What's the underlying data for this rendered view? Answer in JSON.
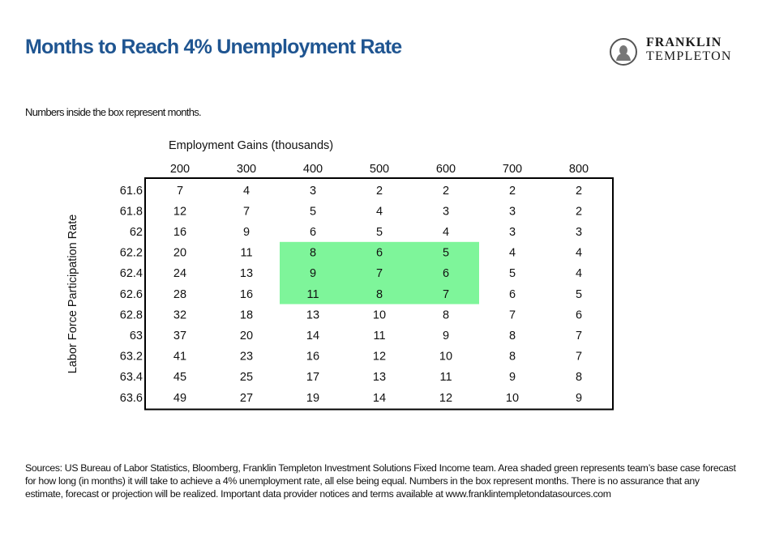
{
  "header": {
    "title": "Months to Reach 4% Unemployment Rate",
    "logo_line1": "FRANKLIN",
    "logo_line2": "TEMPLETON"
  },
  "note": "Numbers inside the box represent months.",
  "footer": "Sources: US Bureau of Labor Statistics, Bloomberg, Franklin Templeton Investment Solutions Fixed Income team. Area shaded green represents team’s base case forecast for how long (in months) it will take to achieve a 4% unemployment rate, all else being equal. Numbers in the box represent months. There is no assurance that any estimate, forecast or projection will be realized. Important data provider notices and terms available at www.franklintempletondatasources.com",
  "colors": {
    "title": "#1f5591",
    "highlight": "#7ef59a",
    "border": "#000000"
  },
  "chart_data": {
    "type": "table",
    "xlabel": "Employment Gains (thousands)",
    "ylabel": "Labor Force Participation Rate",
    "columns": [
      "200",
      "300",
      "400",
      "500",
      "600",
      "700",
      "800"
    ],
    "rows": [
      "61.6",
      "61.8",
      "62",
      "62.2",
      "62.4",
      "62.6",
      "62.8",
      "63",
      "63.2",
      "63.4",
      "63.6"
    ],
    "values": [
      [
        7,
        4,
        3,
        2,
        2,
        2,
        2
      ],
      [
        12,
        7,
        5,
        4,
        3,
        3,
        2
      ],
      [
        16,
        9,
        6,
        5,
        4,
        3,
        3
      ],
      [
        20,
        11,
        8,
        6,
        5,
        4,
        4
      ],
      [
        24,
        13,
        9,
        7,
        6,
        5,
        4
      ],
      [
        28,
        16,
        11,
        8,
        7,
        6,
        5
      ],
      [
        32,
        18,
        13,
        10,
        8,
        7,
        6
      ],
      [
        37,
        20,
        14,
        11,
        9,
        8,
        7
      ],
      [
        41,
        23,
        16,
        12,
        10,
        8,
        7
      ],
      [
        45,
        25,
        17,
        13,
        11,
        9,
        8
      ],
      [
        49,
        27,
        19,
        14,
        12,
        10,
        9
      ]
    ],
    "highlight": {
      "rows": [
        "62.2",
        "62.4",
        "62.6"
      ],
      "columns": [
        "400",
        "500",
        "600"
      ]
    }
  }
}
